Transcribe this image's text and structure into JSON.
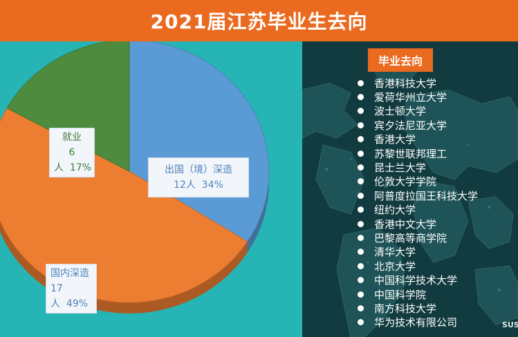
{
  "header": {
    "title": "2021届江苏毕业生去向"
  },
  "chart_data": {
    "type": "pie",
    "title": "2021届江苏毕业生去向",
    "slices": [
      {
        "label": "出国（境）深造",
        "count": "12人",
        "percent": "34%",
        "value": 34,
        "color": "#5b9bd5"
      },
      {
        "label": "国内深造",
        "count": "17人",
        "percent": "49%",
        "value": 49,
        "color": "#ed7d31"
      },
      {
        "label": "就业",
        "count": "6人",
        "percent": "17%",
        "value": 17,
        "color": "#4e8b3e"
      }
    ]
  },
  "destinations": {
    "title": "毕业去向",
    "items": [
      "香港科技大学",
      "爱荷华州立大学",
      "波士顿大学",
      "宾夕法尼亚大学",
      "香港大学",
      "苏黎世联邦理工",
      "昆士兰大学",
      "伦敦大学学院",
      "阿普度拉国王科技大学",
      "纽约大学",
      "香港中文大学",
      "巴黎高等商学院",
      "清华大学",
      "北京大学",
      "中国科学技术大学",
      "中国科学院",
      "南方科技大学",
      "华为技术有限公司"
    ]
  },
  "watermark": "SUST"
}
